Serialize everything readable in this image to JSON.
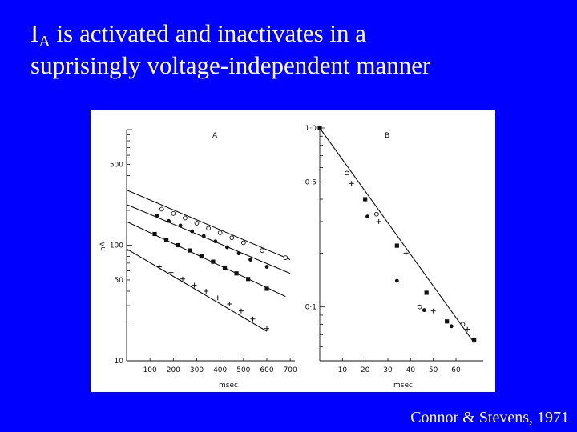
{
  "slide": {
    "title_main": "I",
    "title_sub": "A",
    "title_line1_rest": " is activated and inactivates in a",
    "title_line2": "suprisingly voltage-independent manner",
    "credit": "Connor  & Stevens, 1971"
  },
  "colors": {
    "background": "#0000ff",
    "text": "#ffffff",
    "figure_bg": "#ffffff",
    "ink": "#111111"
  },
  "chart_data": [
    {
      "type": "scatter",
      "panel": "A",
      "xlabel": "msec",
      "ylabel": "nA",
      "y_scale": "log",
      "xlim": [
        0,
        720
      ],
      "ylim": [
        10,
        1000
      ],
      "x_ticks": [
        100,
        200,
        300,
        400,
        500,
        600,
        700
      ],
      "y_ticks": [
        10,
        50,
        100,
        500
      ],
      "series": [
        {
          "marker": "open-circle",
          "points": [
            [
              150,
              205
            ],
            [
              200,
              188
            ],
            [
              250,
              172
            ],
            [
              300,
              155
            ],
            [
              350,
              140
            ],
            [
              400,
              128
            ],
            [
              450,
              116
            ],
            [
              500,
              105
            ],
            [
              580,
              90
            ],
            [
              680,
              78
            ]
          ],
          "fit": [
            [
              0,
              300
            ],
            [
              700,
              75
            ]
          ]
        },
        {
          "marker": "filled-circle",
          "points": [
            [
              130,
              180
            ],
            [
              180,
              162
            ],
            [
              230,
              148
            ],
            [
              280,
              132
            ],
            [
              330,
              120
            ],
            [
              380,
              108
            ],
            [
              430,
              96
            ],
            [
              480,
              85
            ],
            [
              530,
              75
            ],
            [
              600,
              65
            ]
          ],
          "fit": [
            [
              0,
              225
            ],
            [
              700,
              57
            ]
          ]
        },
        {
          "marker": "filled-square",
          "points": [
            [
              120,
              125
            ],
            [
              170,
              111
            ],
            [
              220,
              100
            ],
            [
              270,
              90
            ],
            [
              320,
              80
            ],
            [
              370,
              72
            ],
            [
              420,
              64
            ],
            [
              470,
              57
            ],
            [
              520,
              51
            ],
            [
              600,
              42
            ]
          ],
          "fit": [
            [
              0,
              160
            ],
            [
              680,
              36
            ]
          ]
        },
        {
          "marker": "plus",
          "points": [
            [
              140,
              65
            ],
            [
              190,
              58
            ],
            [
              240,
              51
            ],
            [
              290,
              45
            ],
            [
              340,
              40
            ],
            [
              390,
              35
            ],
            [
              440,
              31
            ],
            [
              490,
              27
            ],
            [
              540,
              23
            ],
            [
              600,
              19
            ]
          ],
          "fit": [
            [
              0,
              93
            ],
            [
              600,
              18
            ]
          ]
        }
      ]
    },
    {
      "type": "scatter",
      "panel": "B",
      "xlabel": "msec",
      "y_scale": "log",
      "xlim": [
        0,
        72
      ],
      "ylim": [
        0.05,
        1.0
      ],
      "x_ticks": [
        10,
        20,
        30,
        40,
        50,
        60
      ],
      "y_ticks": [
        0.1,
        0.5,
        1.0
      ],
      "y_tick_labels": [
        "0·1",
        "0·5",
        "1·0"
      ],
      "series": [
        {
          "marker": "filled-square",
          "points": [
            [
              0,
              1.0
            ],
            [
              20,
              0.4
            ],
            [
              34,
              0.22
            ],
            [
              47,
              0.12
            ],
            [
              56,
              0.083
            ],
            [
              68,
              0.065
            ]
          ]
        },
        {
          "marker": "filled-circle",
          "points": [
            [
              21,
              0.32
            ],
            [
              34,
              0.14
            ],
            [
              46,
              0.096
            ],
            [
              58,
              0.078
            ]
          ]
        },
        {
          "marker": "open-circle",
          "points": [
            [
              12,
              0.56
            ],
            [
              25,
              0.33
            ],
            [
              44,
              0.1
            ],
            [
              63,
              0.08
            ]
          ]
        },
        {
          "marker": "plus",
          "points": [
            [
              14,
              0.49
            ],
            [
              26,
              0.3
            ],
            [
              38,
              0.2
            ],
            [
              50,
              0.095
            ],
            [
              65,
              0.075
            ]
          ]
        }
      ],
      "fit": [
        [
          0,
          1.0
        ],
        [
          68,
          0.063
        ]
      ]
    }
  ]
}
